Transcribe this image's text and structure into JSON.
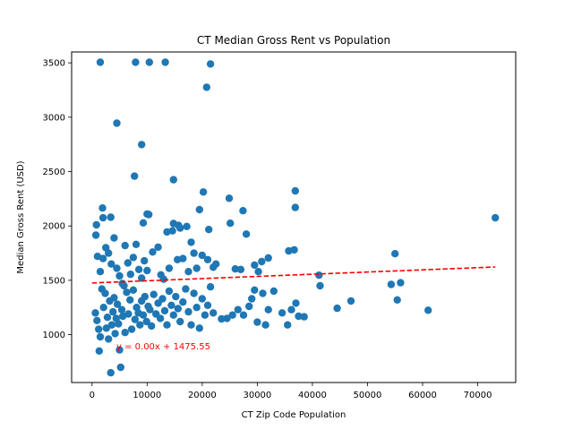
{
  "chart_data": {
    "type": "scatter",
    "title": "CT Median Gross Rent vs Population",
    "xlabel": "CT Zip Code Population",
    "ylabel": "Median Gross Rent (USD)",
    "xlim": [
      -3700,
      76900
    ],
    "ylim": [
      560,
      3600
    ],
    "xticks": [
      0,
      10000,
      20000,
      30000,
      40000,
      50000,
      60000,
      70000
    ],
    "yticks": [
      1000,
      1500,
      2000,
      2500,
      3000,
      3500
    ],
    "grid": false,
    "marker_color": "#1f77b4",
    "regression": {
      "label": "y = 0.00x + 1475.55",
      "slope": 0.00201,
      "intercept": 1475.55,
      "x_range": [
        0,
        73200
      ],
      "color": "#ff0000",
      "style": "dashed"
    },
    "points": [
      [
        1500,
        3505
      ],
      [
        7900,
        3505
      ],
      [
        10400,
        3505
      ],
      [
        13300,
        3505
      ],
      [
        21500,
        3490
      ],
      [
        20800,
        3275
      ],
      [
        4500,
        2945
      ],
      [
        9000,
        2748
      ],
      [
        7700,
        2458
      ],
      [
        14800,
        2425
      ],
      [
        27400,
        2140
      ],
      [
        24900,
        2255
      ],
      [
        20200,
        2312
      ],
      [
        36900,
        2322
      ],
      [
        36900,
        2170
      ],
      [
        73200,
        2075
      ],
      [
        55000,
        1745
      ],
      [
        1900,
        2165
      ],
      [
        800,
        2010
      ],
      [
        2000,
        2075
      ],
      [
        3400,
        2080
      ],
      [
        700,
        1915
      ],
      [
        9300,
        2028
      ],
      [
        10000,
        2110
      ],
      [
        10300,
        2105
      ],
      [
        12000,
        1805
      ],
      [
        13600,
        1945
      ],
      [
        14600,
        1955
      ],
      [
        14800,
        2022
      ],
      [
        15700,
        2005
      ],
      [
        16000,
        1980
      ],
      [
        17200,
        1995
      ],
      [
        19500,
        2150
      ],
      [
        21200,
        1967
      ],
      [
        25100,
        2025
      ],
      [
        28000,
        1925
      ],
      [
        30800,
        1672
      ],
      [
        32000,
        1705
      ],
      [
        35700,
        1770
      ],
      [
        36700,
        1780
      ],
      [
        41200,
        1547
      ],
      [
        41400,
        1450
      ],
      [
        44500,
        1243
      ],
      [
        47000,
        1310
      ],
      [
        54300,
        1462
      ],
      [
        55400,
        1320
      ],
      [
        56000,
        1478
      ],
      [
        61000,
        1225
      ],
      [
        1000,
        1720
      ],
      [
        1500,
        1580
      ],
      [
        2000,
        1700
      ],
      [
        2500,
        1800
      ],
      [
        3000,
        1750
      ],
      [
        3500,
        1650
      ],
      [
        4000,
        1890
      ],
      [
        4500,
        1610
      ],
      [
        5000,
        1540
      ],
      [
        5500,
        1470
      ],
      [
        6000,
        1820
      ],
      [
        6500,
        1660
      ],
      [
        7000,
        1555
      ],
      [
        7500,
        1710
      ],
      [
        8000,
        1830
      ],
      [
        8500,
        1600
      ],
      [
        9000,
        1520
      ],
      [
        9500,
        1680
      ],
      [
        10000,
        1590
      ],
      [
        11000,
        1760
      ],
      [
        12500,
        1550
      ],
      [
        13000,
        1510
      ],
      [
        14000,
        1610
      ],
      [
        15500,
        1690
      ],
      [
        16500,
        1700
      ],
      [
        17500,
        1580
      ],
      [
        18000,
        1850
      ],
      [
        18500,
        1750
      ],
      [
        19000,
        1610
      ],
      [
        20000,
        1730
      ],
      [
        21000,
        1690
      ],
      [
        22000,
        1620
      ],
      [
        22500,
        1650
      ],
      [
        26000,
        1605
      ],
      [
        27000,
        1600
      ],
      [
        29500,
        1640
      ],
      [
        30200,
        1580
      ],
      [
        600,
        1200
      ],
      [
        900,
        1130
      ],
      [
        1200,
        1050
      ],
      [
        1300,
        850
      ],
      [
        1500,
        980
      ],
      [
        1800,
        1420
      ],
      [
        2100,
        1250
      ],
      [
        2400,
        1380
      ],
      [
        2600,
        1060
      ],
      [
        2800,
        1160
      ],
      [
        3000,
        960
      ],
      [
        3200,
        1310
      ],
      [
        3400,
        650
      ],
      [
        3600,
        1090
      ],
      [
        3800,
        1210
      ],
      [
        4000,
        1340
      ],
      [
        4200,
        1010
      ],
      [
        4400,
        1150
      ],
      [
        4600,
        1280
      ],
      [
        4800,
        1100
      ],
      [
        5000,
        860
      ],
      [
        5200,
        700
      ],
      [
        5400,
        1230
      ],
      [
        5600,
        1170
      ],
      [
        5800,
        1450
      ],
      [
        6000,
        1020
      ],
      [
        6300,
        1390
      ],
      [
        6600,
        1190
      ],
      [
        6900,
        1320
      ],
      [
        7200,
        1050
      ],
      [
        7500,
        1410
      ],
      [
        7800,
        1140
      ],
      [
        8100,
        1250
      ],
      [
        8400,
        1200
      ],
      [
        8700,
        1090
      ],
      [
        9000,
        1310
      ],
      [
        9300,
        1180
      ],
      [
        9600,
        1350
      ],
      [
        9900,
        1120
      ],
      [
        10200,
        1260
      ],
      [
        10500,
        1230
      ],
      [
        10800,
        1080
      ],
      [
        11200,
        1370
      ],
      [
        11600,
        1190
      ],
      [
        12000,
        1290
      ],
      [
        12400,
        1150
      ],
      [
        12800,
        1330
      ],
      [
        13200,
        1220
      ],
      [
        13600,
        1090
      ],
      [
        14000,
        1400
      ],
      [
        14400,
        1270
      ],
      [
        14800,
        1180
      ],
      [
        15200,
        1350
      ],
      [
        15600,
        1240
      ],
      [
        16000,
        1120
      ],
      [
        16500,
        1300
      ],
      [
        17000,
        1420
      ],
      [
        17500,
        1210
      ],
      [
        18000,
        1090
      ],
      [
        18500,
        1380
      ],
      [
        19000,
        1250
      ],
      [
        19500,
        1060
      ],
      [
        20000,
        1330
      ],
      [
        20500,
        1180
      ],
      [
        21000,
        1270
      ],
      [
        21500,
        1440
      ],
      [
        22000,
        1200
      ],
      [
        23500,
        1145
      ],
      [
        24500,
        1150
      ],
      [
        25500,
        1180
      ],
      [
        26500,
        1230
      ],
      [
        27500,
        1180
      ],
      [
        28500,
        1260
      ],
      [
        29000,
        1330
      ],
      [
        29500,
        1410
      ],
      [
        30000,
        1115
      ],
      [
        31000,
        1380
      ],
      [
        31500,
        1090
      ],
      [
        32000,
        1230
      ],
      [
        33000,
        1400
      ],
      [
        34500,
        1200
      ],
      [
        35500,
        1090
      ],
      [
        36200,
        1230
      ],
      [
        37000,
        1290
      ],
      [
        37500,
        1170
      ],
      [
        38500,
        1165
      ]
    ]
  }
}
